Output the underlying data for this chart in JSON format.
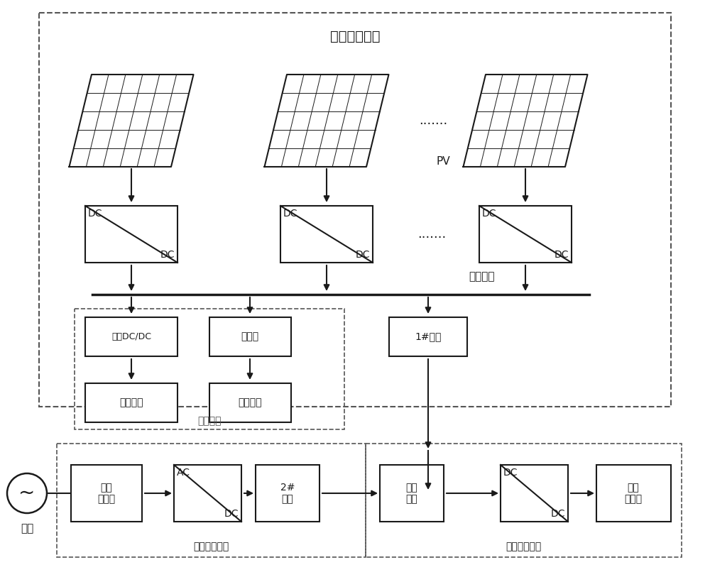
{
  "bg_color": "#ffffff",
  "line_color": "#1a1a1a",
  "dashed_color": "#555555",
  "title_pv": "光伏发电系统",
  "label_pv": "PV",
  "label_dots": ".......",
  "label_bus": "汇流母线",
  "label_storage": "储能系统",
  "label_bidirectional": "双向DC/DC",
  "label_supercap": "超级电容",
  "label_charger": "充电器",
  "label_battery": "电池系统",
  "label_switch1": "1#开关",
  "label_rectifier": "整流\n变压器",
  "label_acdc_top": "AC",
  "label_acdc_bot": "DC",
  "label_switch2": "2#\n开关",
  "label_dcbus": "直流\n母线",
  "label_dcdc_top": "DC",
  "label_dcdc_bot": "DC",
  "label_furnace": "直流\n沶炼炉",
  "label_grid": "电网",
  "label_power_supply": "电炉供电系统",
  "label_smelting": "电炉沶炼系统"
}
